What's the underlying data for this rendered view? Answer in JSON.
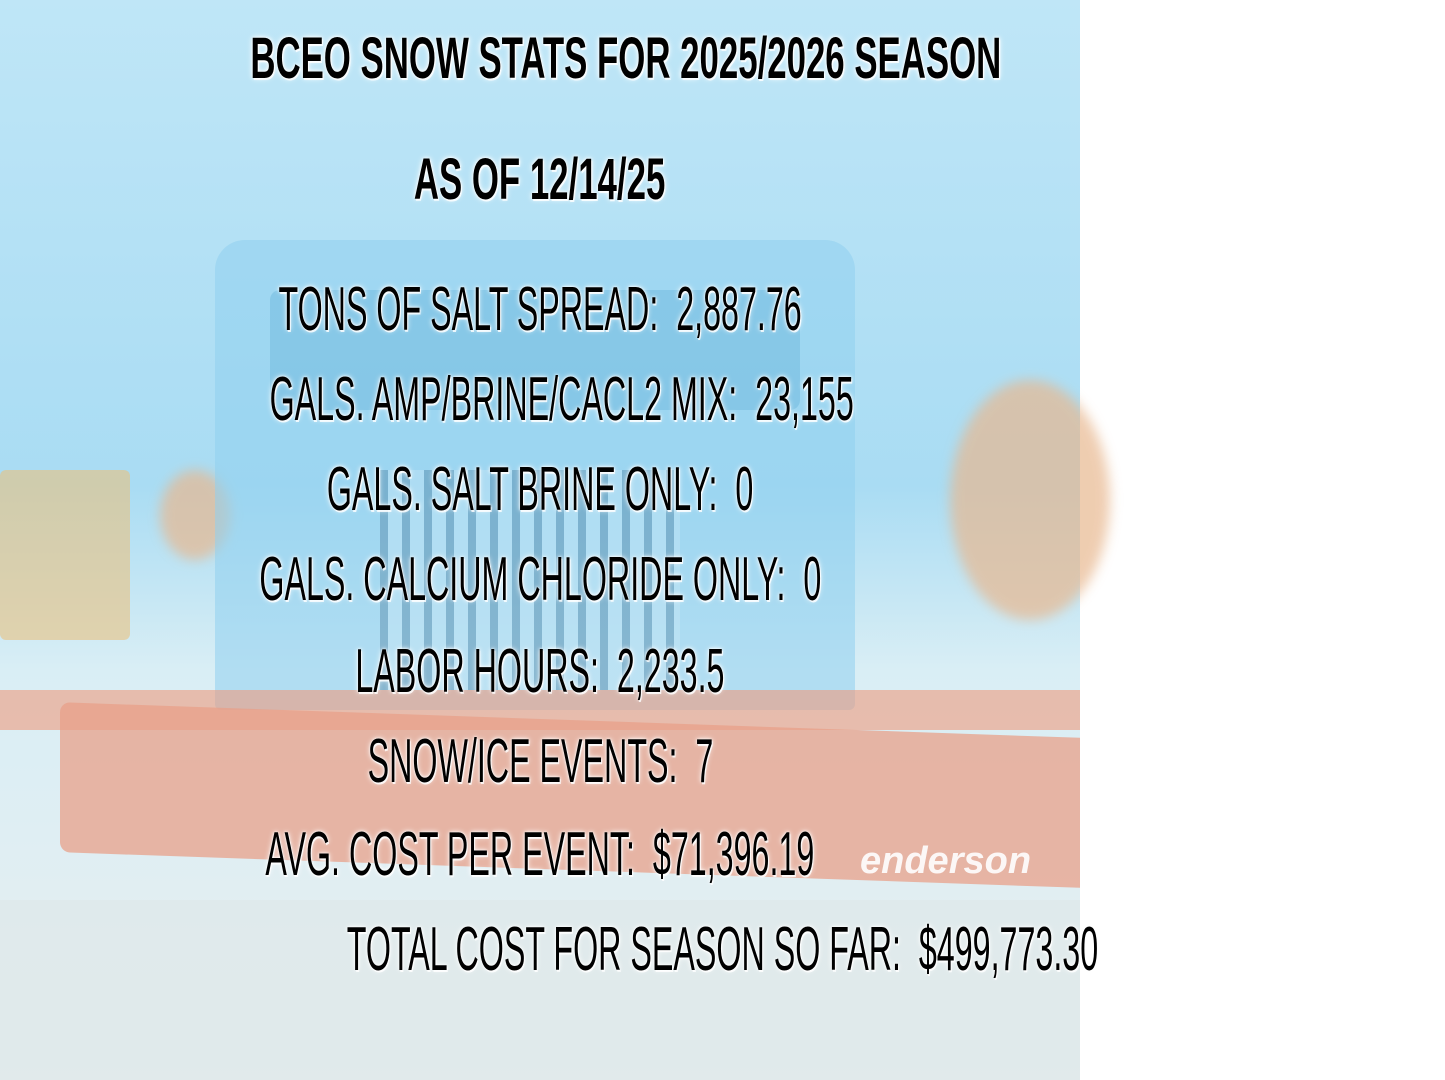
{
  "title": "BCEO SNOW STATS FOR 2025/2026 SEASON",
  "subtitle": "AS OF 12/14/25",
  "stats": [
    {
      "label": "TONS OF SALT SPREAD:",
      "value": "2,887.76",
      "text": "TONS OF SALT SPREAD:  2,887.76"
    },
    {
      "label": "GALS. AMP/BRINE/CACL2 MIX:",
      "value": "23,155",
      "text": "GALS. AMP/BRINE/CACL2 MIX:  23,155"
    },
    {
      "label": "GALS. SALT BRINE ONLY:",
      "value": "0",
      "text": "GALS. SALT BRINE ONLY:  0"
    },
    {
      "label": "GALS. CALCIUM CHLORIDE ONLY:",
      "value": "0",
      "text": "GALS. CALCIUM CHLORIDE ONLY:  0"
    },
    {
      "label": "LABOR HOURS:",
      "value": "2,233.5",
      "text": "LABOR HOURS:  2,233.5"
    },
    {
      "label": "SNOW/ICE EVENTS:",
      "value": "7",
      "text": "SNOW/ICE EVENTS:  7"
    },
    {
      "label": "AVG. COST PER EVENT:",
      "value": "$71,396.19",
      "text": "AVG. COST PER EVENT:  $71,396.19"
    },
    {
      "label": "TOTAL COST FOR SEASON SO FAR:",
      "value": "$499,773.30",
      "text": "TOTAL COST FOR SEASON SO FAR:  $499,773.30"
    }
  ],
  "background": {
    "plow_logo": "enderson",
    "sky_color": "#a9dcf3",
    "plow_color": "#e8a08a"
  }
}
